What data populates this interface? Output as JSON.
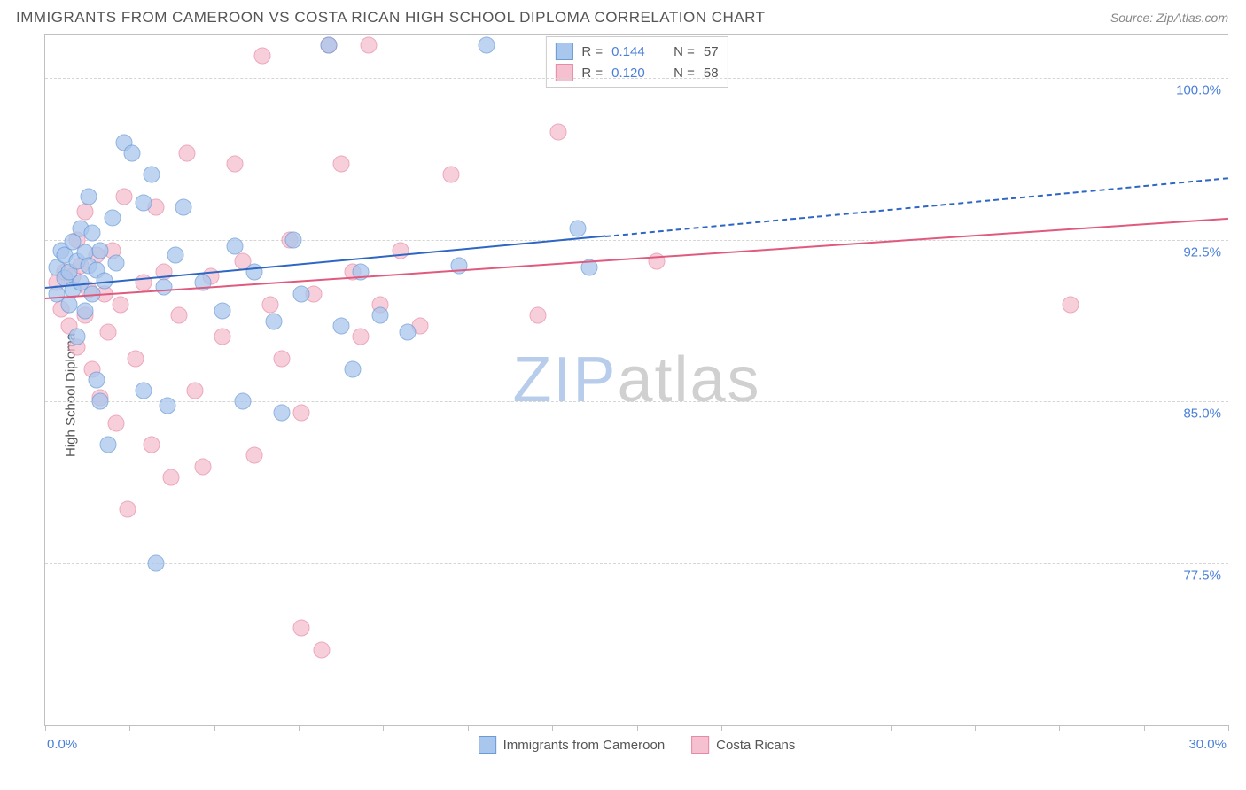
{
  "header": {
    "title": "IMMIGRANTS FROM CAMEROON VS COSTA RICAN HIGH SCHOOL DIPLOMA CORRELATION CHART",
    "source": "Source: ZipAtlas.com"
  },
  "chart": {
    "type": "scatter",
    "ylabel": "High School Diploma",
    "watermark": {
      "part1": "ZIP",
      "part2": "atlas"
    },
    "xlim": [
      0,
      30
    ],
    "ylim": [
      70,
      102
    ],
    "xrange_labels": {
      "left": "0.0%",
      "right": "30.0%"
    },
    "yticks": [
      {
        "value": 100.0,
        "label": "100.0%"
      },
      {
        "value": 92.5,
        "label": "92.5%"
      },
      {
        "value": 85.0,
        "label": "85.0%"
      },
      {
        "value": 77.5,
        "label": "77.5%"
      }
    ],
    "xticks_minor": [
      0,
      1,
      2,
      3,
      4,
      5,
      6,
      7,
      8,
      9,
      10,
      11,
      12,
      13,
      14
    ],
    "series": {
      "a": {
        "name": "Immigrants from Cameroon",
        "fill_color": "#a9c6ec",
        "stroke_color": "#6b9ad8",
        "line_color": "#2e66c4",
        "R": "0.144",
        "N": "57",
        "trend": {
          "x1": 0,
          "y1": 90.3,
          "x2_solid": 14.2,
          "y2_solid": 92.7,
          "x2_dash": 30,
          "y2_dash": 95.4
        },
        "points": [
          [
            0.3,
            91.2
          ],
          [
            0.3,
            90.0
          ],
          [
            0.4,
            92.0
          ],
          [
            0.5,
            90.7
          ],
          [
            0.5,
            91.8
          ],
          [
            0.6,
            89.5
          ],
          [
            0.6,
            91.0
          ],
          [
            0.7,
            92.4
          ],
          [
            0.7,
            90.2
          ],
          [
            0.8,
            91.5
          ],
          [
            0.8,
            88.0
          ],
          [
            0.9,
            93.0
          ],
          [
            0.9,
            90.5
          ],
          [
            1.0,
            91.9
          ],
          [
            1.0,
            89.2
          ],
          [
            1.1,
            94.5
          ],
          [
            1.1,
            91.3
          ],
          [
            1.2,
            90.0
          ],
          [
            1.2,
            92.8
          ],
          [
            1.3,
            86.0
          ],
          [
            1.3,
            91.1
          ],
          [
            1.4,
            85.0
          ],
          [
            1.4,
            92.0
          ],
          [
            1.5,
            90.6
          ],
          [
            1.6,
            83.0
          ],
          [
            1.7,
            93.5
          ],
          [
            1.8,
            91.4
          ],
          [
            2.0,
            97.0
          ],
          [
            2.2,
            96.5
          ],
          [
            2.5,
            94.2
          ],
          [
            2.5,
            85.5
          ],
          [
            2.7,
            95.5
          ],
          [
            2.8,
            77.5
          ],
          [
            3.0,
            90.3
          ],
          [
            3.1,
            84.8
          ],
          [
            3.3,
            91.8
          ],
          [
            3.5,
            94.0
          ],
          [
            4.0,
            90.5
          ],
          [
            4.5,
            89.2
          ],
          [
            4.8,
            92.2
          ],
          [
            5.0,
            85.0
          ],
          [
            5.3,
            91.0
          ],
          [
            5.8,
            88.7
          ],
          [
            6.0,
            84.5
          ],
          [
            6.3,
            92.5
          ],
          [
            6.5,
            90.0
          ],
          [
            7.2,
            101.5
          ],
          [
            7.5,
            88.5
          ],
          [
            7.8,
            86.5
          ],
          [
            8.0,
            91.0
          ],
          [
            8.5,
            89.0
          ],
          [
            9.2,
            88.2
          ],
          [
            10.5,
            91.3
          ],
          [
            11.2,
            101.5
          ],
          [
            13.5,
            93.0
          ],
          [
            13.8,
            91.2
          ]
        ]
      },
      "b": {
        "name": "Costa Ricans",
        "fill_color": "#f5c0cf",
        "stroke_color": "#e88aa5",
        "line_color": "#e05a7e",
        "R": "0.120",
        "N": "58",
        "trend": {
          "x1": 0,
          "y1": 89.8,
          "x2_solid": 30,
          "y2_solid": 93.5,
          "x2_dash": 30,
          "y2_dash": 93.5
        },
        "points": [
          [
            0.3,
            90.5
          ],
          [
            0.4,
            89.3
          ],
          [
            0.5,
            91.0
          ],
          [
            0.6,
            88.5
          ],
          [
            0.7,
            90.8
          ],
          [
            0.8,
            92.5
          ],
          [
            0.8,
            87.5
          ],
          [
            0.9,
            91.3
          ],
          [
            1.0,
            89.0
          ],
          [
            1.0,
            93.8
          ],
          [
            1.1,
            90.2
          ],
          [
            1.2,
            86.5
          ],
          [
            1.3,
            91.8
          ],
          [
            1.4,
            85.2
          ],
          [
            1.5,
            90.0
          ],
          [
            1.6,
            88.2
          ],
          [
            1.7,
            92.0
          ],
          [
            1.8,
            84.0
          ],
          [
            1.9,
            89.5
          ],
          [
            2.0,
            94.5
          ],
          [
            2.1,
            80.0
          ],
          [
            2.3,
            87.0
          ],
          [
            2.5,
            90.5
          ],
          [
            2.7,
            83.0
          ],
          [
            2.8,
            94.0
          ],
          [
            3.0,
            91.0
          ],
          [
            3.2,
            81.5
          ],
          [
            3.4,
            89.0
          ],
          [
            3.6,
            96.5
          ],
          [
            3.8,
            85.5
          ],
          [
            4.0,
            82.0
          ],
          [
            4.2,
            90.8
          ],
          [
            4.5,
            88.0
          ],
          [
            4.8,
            96.0
          ],
          [
            5.0,
            91.5
          ],
          [
            5.3,
            82.5
          ],
          [
            5.5,
            101.0
          ],
          [
            5.7,
            89.5
          ],
          [
            6.0,
            87.0
          ],
          [
            6.2,
            92.5
          ],
          [
            6.5,
            84.5
          ],
          [
            6.5,
            74.5
          ],
          [
            6.8,
            90.0
          ],
          [
            7.0,
            73.5
          ],
          [
            7.2,
            101.5
          ],
          [
            7.5,
            96.0
          ],
          [
            7.8,
            91.0
          ],
          [
            8.0,
            88.0
          ],
          [
            8.2,
            101.5
          ],
          [
            8.5,
            89.5
          ],
          [
            9.0,
            92.0
          ],
          [
            9.5,
            88.5
          ],
          [
            10.3,
            95.5
          ],
          [
            12.5,
            89.0
          ],
          [
            13.0,
            97.5
          ],
          [
            15.5,
            91.5
          ],
          [
            26.0,
            89.5
          ]
        ]
      }
    }
  }
}
